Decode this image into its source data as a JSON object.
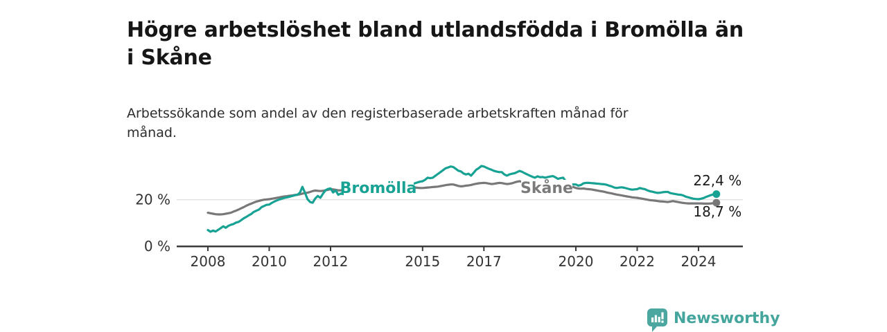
{
  "header": {
    "title": "Högre arbetslöshet bland utlandsfödda i Bromölla än\ni Skåne",
    "subtitle": "Arbetssökande som andel av den registerbaserade arbetskraften månad för\nmånad."
  },
  "footer": {
    "brand": "Newsworthy",
    "logo_icon": "bar-chart-speech-bubble-badge",
    "brand_color": "#44a59d",
    "badge_color": "#4ca7a0"
  },
  "chart_data": {
    "type": "line",
    "title": "Högre arbetslöshet bland utlandsfödda i Bromölla än i Skåne",
    "subtitle": "Arbetssökande som andel av den registerbaserade arbetskraften månad för månad.",
    "unit": "%",
    "frequency": "monthly",
    "x_start_year": 2008,
    "x_start_month": 1,
    "x_ticks": [
      2008,
      2010,
      2012,
      2015,
      2017,
      2020,
      2022,
      2024
    ],
    "y_ticks": [
      {
        "value": 20,
        "label": "20 %"
      },
      {
        "value": 0,
        "label": "0 %"
      }
    ],
    "ylim": [
      0,
      43
    ],
    "grid": "y-at-20-only",
    "legend_position": "inline-on-line",
    "series": [
      {
        "name": "Bromölla",
        "color": "#17a294",
        "end_value": 22.4,
        "end_label": "22,4 %",
        "values": [
          7.0,
          6.3,
          6.8,
          6.4,
          7.1,
          7.8,
          8.6,
          8.0,
          8.8,
          9.3,
          9.6,
          10.2,
          10.5,
          11.2,
          12.0,
          12.6,
          13.3,
          13.9,
          14.8,
          15.3,
          15.8,
          16.8,
          17.3,
          17.8,
          17.9,
          18.6,
          19.2,
          19.7,
          20.1,
          20.4,
          20.8,
          21.0,
          21.3,
          21.6,
          21.9,
          22.1,
          23.0,
          25.5,
          23.0,
          20.2,
          19.0,
          18.7,
          20.5,
          21.6,
          20.8,
          22.5,
          24.0,
          24.6,
          24.8,
          23.1,
          24.0,
          22.1,
          22.6,
          22.4,
          22.8,
          23.1,
          23.4,
          23.6,
          23.9,
          24.1,
          24.3,
          24.5,
          24.6,
          24.8,
          25.0,
          25.1,
          25.3,
          25.4,
          25.6,
          25.7,
          25.9,
          26.0,
          26.1,
          26.2,
          26.3,
          26.4,
          26.5,
          26.5,
          26.6,
          26.6,
          26.7,
          27.0,
          27.4,
          27.7,
          27.9,
          28.5,
          29.4,
          29.2,
          29.4,
          30.2,
          31.0,
          31.8,
          32.6,
          33.4,
          33.8,
          34.2,
          34.0,
          33.2,
          32.4,
          32.1,
          31.2,
          30.8,
          31.1,
          30.3,
          31.5,
          32.8,
          33.5,
          34.4,
          34.2,
          33.7,
          33.2,
          32.8,
          32.3,
          32.0,
          31.8,
          31.8,
          30.8,
          30.3,
          30.8,
          31.1,
          31.3,
          31.8,
          32.3,
          31.9,
          31.3,
          30.8,
          30.3,
          29.8,
          29.4,
          30.0,
          29.6,
          29.7,
          29.4,
          29.7,
          29.9,
          30.1,
          29.6,
          28.9,
          29.2,
          29.4,
          28.0,
          27.0,
          26.7,
          26.5,
          26.5,
          26.0,
          26.3,
          27.0,
          27.2,
          27.2,
          27.1,
          27.0,
          26.9,
          26.8,
          26.7,
          26.6,
          26.4,
          26.0,
          25.7,
          25.2,
          25.0,
          25.2,
          25.3,
          25.1,
          24.8,
          24.5,
          24.3,
          24.4,
          24.5,
          25.0,
          24.7,
          24.5,
          24.0,
          23.6,
          23.4,
          23.1,
          22.9,
          23.0,
          23.2,
          23.3,
          23.3,
          22.8,
          22.6,
          22.4,
          22.2,
          22.1,
          21.8,
          21.3,
          21.0,
          20.7,
          20.4,
          20.3,
          20.2,
          20.4,
          20.7,
          21.2,
          21.6,
          22.0,
          22.3,
          22.4
        ]
      },
      {
        "name": "Skåne",
        "color": "#787878",
        "end_value": 18.7,
        "end_label": "18,7 %",
        "values": [
          14.4,
          14.2,
          14.0,
          13.8,
          13.7,
          13.7,
          13.8,
          14.0,
          14.2,
          14.4,
          14.9,
          15.3,
          15.8,
          16.3,
          16.8,
          17.4,
          17.9,
          18.3,
          18.8,
          19.2,
          19.5,
          19.8,
          20.0,
          20.1,
          20.2,
          20.4,
          20.6,
          20.8,
          21.0,
          21.2,
          21.4,
          21.5,
          21.7,
          21.8,
          22.0,
          22.1,
          22.3,
          22.6,
          22.8,
          23.0,
          23.3,
          23.7,
          23.9,
          23.8,
          23.7,
          23.8,
          24.0,
          24.2,
          24.5,
          24.4,
          24.2,
          24.0,
          24.0,
          24.1,
          24.2,
          24.3,
          24.3,
          24.4,
          24.5,
          24.5,
          24.6,
          24.7,
          24.7,
          24.8,
          24.9,
          24.9,
          25.0,
          25.0,
          25.1,
          25.1,
          25.2,
          25.2,
          25.3,
          25.3,
          25.4,
          25.4,
          25.4,
          25.4,
          25.4,
          25.4,
          25.3,
          25.2,
          25.1,
          25.0,
          25.0,
          25.1,
          25.2,
          25.3,
          25.4,
          25.5,
          25.6,
          25.8,
          26.0,
          26.2,
          26.4,
          26.5,
          26.5,
          26.2,
          25.9,
          25.7,
          25.8,
          26.0,
          26.1,
          26.3,
          26.6,
          26.8,
          27.0,
          27.1,
          27.2,
          27.1,
          26.9,
          26.7,
          26.8,
          27.0,
          27.2,
          27.1,
          26.9,
          26.7,
          26.8,
          27.0,
          27.4,
          27.7,
          27.9,
          27.6,
          27.2,
          26.9,
          26.6,
          26.3,
          26.1,
          25.9,
          25.8,
          25.7,
          25.6,
          25.5,
          25.4,
          25.3,
          25.3,
          25.4,
          25.5,
          25.6,
          25.7,
          25.7,
          25.6,
          25.4,
          25.0,
          24.8,
          24.7,
          24.8,
          24.6,
          24.5,
          24.4,
          24.2,
          24.0,
          23.8,
          23.6,
          23.4,
          23.1,
          22.9,
          22.7,
          22.4,
          22.2,
          22.0,
          21.8,
          21.6,
          21.4,
          21.2,
          21.0,
          20.9,
          20.8,
          20.6,
          20.4,
          20.2,
          20.0,
          19.8,
          19.7,
          19.6,
          19.4,
          19.3,
          19.2,
          19.1,
          19.0,
          19.2,
          19.4,
          19.2,
          19.0,
          18.8,
          18.6,
          18.5,
          18.4,
          18.4,
          18.4,
          18.4,
          18.4,
          18.4,
          18.3,
          18.3,
          18.3,
          18.4,
          18.5,
          18.7
        ]
      }
    ]
  }
}
